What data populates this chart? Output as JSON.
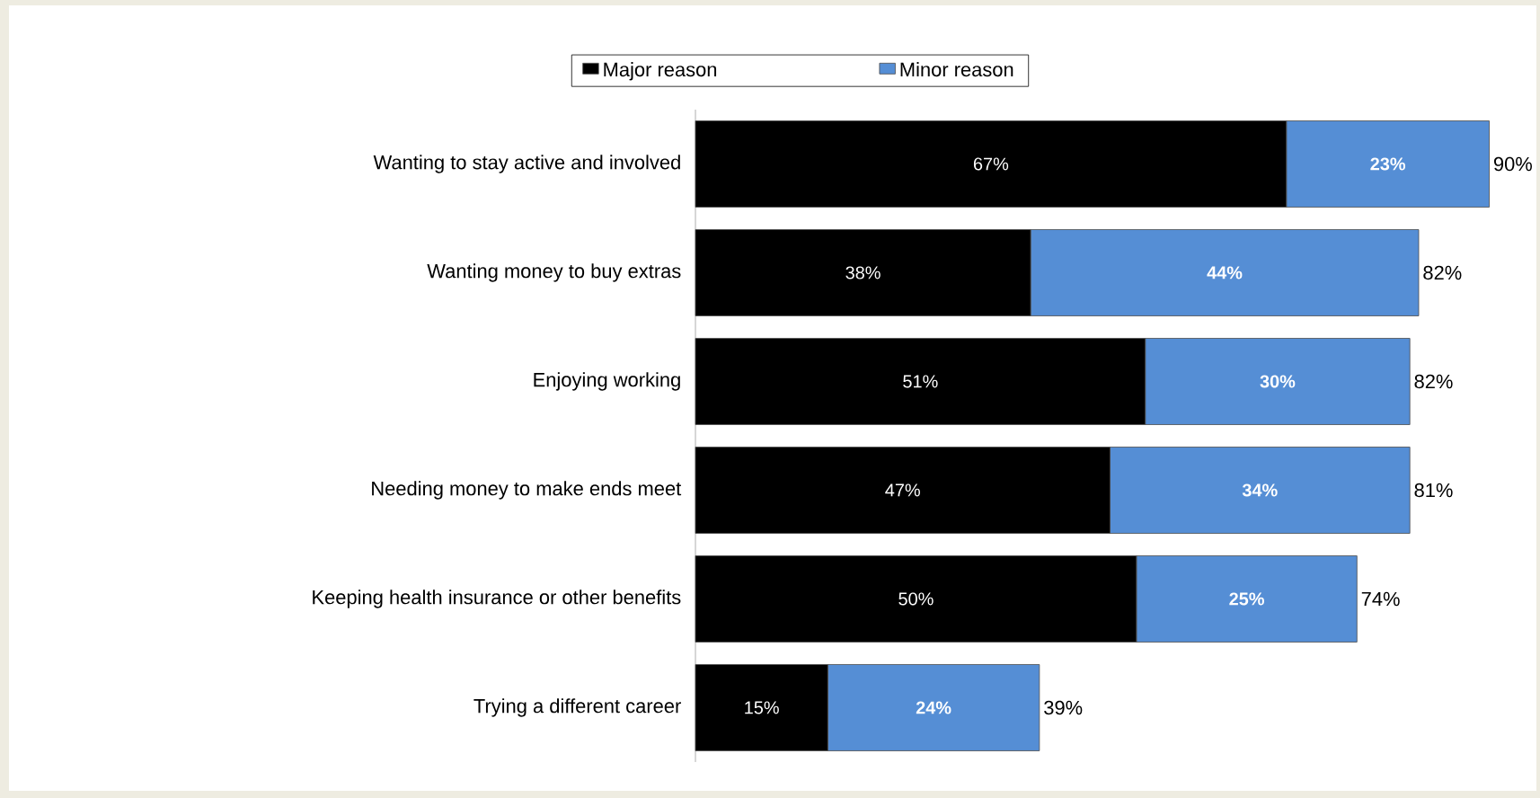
{
  "chart_data": {
    "type": "bar",
    "orientation": "horizontal",
    "stacked": true,
    "legend": "top",
    "categories": [
      "Wanting to stay active and involved",
      "Wanting money to buy extras",
      "Enjoying working",
      "Needing money to make ends meet",
      "Keeping health insurance or other benefits",
      "Trying a different career"
    ],
    "series": [
      {
        "name": "Major reason",
        "color": "#000000",
        "values": [
          67,
          38,
          51,
          47,
          50,
          15
        ],
        "value_labels": [
          "67%",
          "38%",
          "51%",
          "47%",
          "50%",
          "15%"
        ]
      },
      {
        "name": "Minor reason",
        "color": "#558ed5",
        "values": [
          23,
          44,
          30,
          34,
          25,
          24
        ],
        "value_labels": [
          "23%",
          "44%",
          "30%",
          "34%",
          "25%",
          "24%"
        ]
      }
    ],
    "totals": [
      "90%",
      "82%",
      "82%",
      "81%",
      "74%",
      "39%"
    ]
  }
}
